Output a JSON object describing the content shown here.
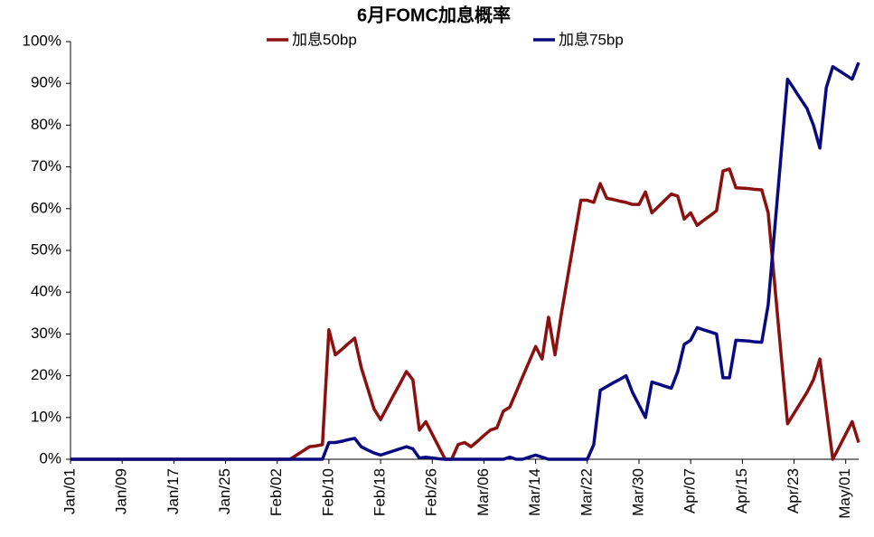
{
  "chart_data": {
    "type": "line",
    "title": "6月FOMC加息概率",
    "categories": [
      "Jan/01",
      null,
      null,
      null,
      null,
      null,
      null,
      null,
      "Jan/09",
      null,
      null,
      null,
      null,
      null,
      null,
      null,
      "Jan/17",
      null,
      null,
      null,
      null,
      null,
      null,
      null,
      "Jan/25",
      null,
      null,
      null,
      null,
      null,
      null,
      null,
      "Feb/02",
      null,
      null,
      null,
      null,
      null,
      null,
      null,
      "Feb/10",
      null,
      null,
      null,
      null,
      null,
      null,
      null,
      "Feb/18",
      null,
      null,
      null,
      null,
      null,
      null,
      null,
      "Feb/26",
      null,
      null,
      null,
      null,
      null,
      null,
      null,
      "Mar/06",
      null,
      null,
      null,
      null,
      null,
      null,
      null,
      "Mar/14",
      null,
      null,
      null,
      null,
      null,
      null,
      null,
      "Mar/22",
      null,
      null,
      null,
      null,
      null,
      null,
      null,
      "Mar/30",
      null,
      null,
      null,
      null,
      null,
      null,
      null,
      "Apr/07",
      null,
      null,
      null,
      null,
      null,
      null,
      null,
      "Apr/15",
      null,
      null,
      null,
      null,
      null,
      null,
      null,
      "Apr/23",
      null,
      null,
      null,
      null,
      null,
      null,
      null,
      "May/01",
      null,
      null
    ],
    "series": [
      {
        "name": "加息50bp",
        "color": "#8b1010",
        "values": [
          0,
          0,
          0,
          0,
          0,
          0,
          0,
          0,
          0,
          0,
          0,
          0,
          0,
          0,
          0,
          0,
          0,
          0,
          0,
          0,
          0,
          0,
          0,
          0,
          0,
          0,
          0,
          0,
          0,
          0,
          0,
          0,
          0,
          0,
          0,
          1,
          2,
          3,
          3.2,
          3.5,
          31,
          25,
          26.3,
          27.7,
          29,
          22,
          17,
          12,
          9.5,
          12.4,
          15.3,
          18.1,
          21,
          19,
          7,
          9,
          6,
          3,
          0,
          0,
          3.5,
          4,
          3,
          4.3,
          5.7,
          7,
          7.5,
          11.5,
          12.5,
          16.1,
          19.8,
          23.4,
          27,
          24,
          34,
          25,
          35,
          44,
          53,
          62,
          62,
          61.5,
          66,
          62.5,
          62.2,
          61.8,
          61.5,
          61,
          61,
          64,
          59,
          60.5,
          62,
          63.5,
          63,
          57.5,
          59,
          56,
          57.2,
          58.3,
          59.5,
          69,
          69.5,
          65,
          64.9,
          64.8,
          64.6,
          64.5,
          59,
          42,
          25,
          8.5,
          11,
          13.5,
          16,
          19,
          24,
          12,
          0,
          3,
          6,
          9,
          4
        ]
      },
      {
        "name": "加息75bp",
        "color": "#0a0a80",
        "values": [
          0,
          0,
          0,
          0,
          0,
          0,
          0,
          0,
          0,
          0,
          0,
          0,
          0,
          0,
          0,
          0,
          0,
          0,
          0,
          0,
          0,
          0,
          0,
          0,
          0,
          0,
          0,
          0,
          0,
          0,
          0,
          0,
          0,
          0,
          0,
          0,
          0,
          0,
          0,
          0,
          4,
          4,
          4.3,
          4.7,
          5,
          3,
          2.2,
          1.5,
          1,
          1.5,
          2,
          2.5,
          3,
          2.5,
          0.3,
          0.5,
          0.3,
          0.1,
          0,
          0,
          0,
          0,
          0,
          0,
          0,
          0,
          0,
          0,
          0.5,
          0,
          0,
          0.5,
          1,
          0.5,
          0,
          0,
          0,
          0,
          0,
          0,
          0,
          3.5,
          16.5,
          17.4,
          18.3,
          19.1,
          20,
          16,
          13,
          10,
          18.5,
          18,
          17.5,
          17,
          21,
          27.5,
          28.5,
          31.5,
          31,
          30.5,
          30,
          19.5,
          19.5,
          28.5,
          28.4,
          28.3,
          28.1,
          28,
          37,
          55,
          73,
          91,
          88.7,
          86.3,
          84,
          80,
          74.5,
          89,
          94,
          93,
          92,
          91,
          95
        ]
      }
    ],
    "ylim": [
      0,
      100
    ],
    "yticks": [
      {
        "value": 0,
        "label": "0%"
      },
      {
        "value": 10,
        "label": "10%"
      },
      {
        "value": 20,
        "label": "20%"
      },
      {
        "value": 30,
        "label": "30%"
      },
      {
        "value": 40,
        "label": "40%"
      },
      {
        "value": 50,
        "label": "50%"
      },
      {
        "value": 60,
        "label": "60%"
      },
      {
        "value": 70,
        "label": "70%"
      },
      {
        "value": 80,
        "label": "80%"
      },
      {
        "value": 90,
        "label": "90%"
      },
      {
        "value": 100,
        "label": "100%"
      }
    ],
    "grid": false
  }
}
